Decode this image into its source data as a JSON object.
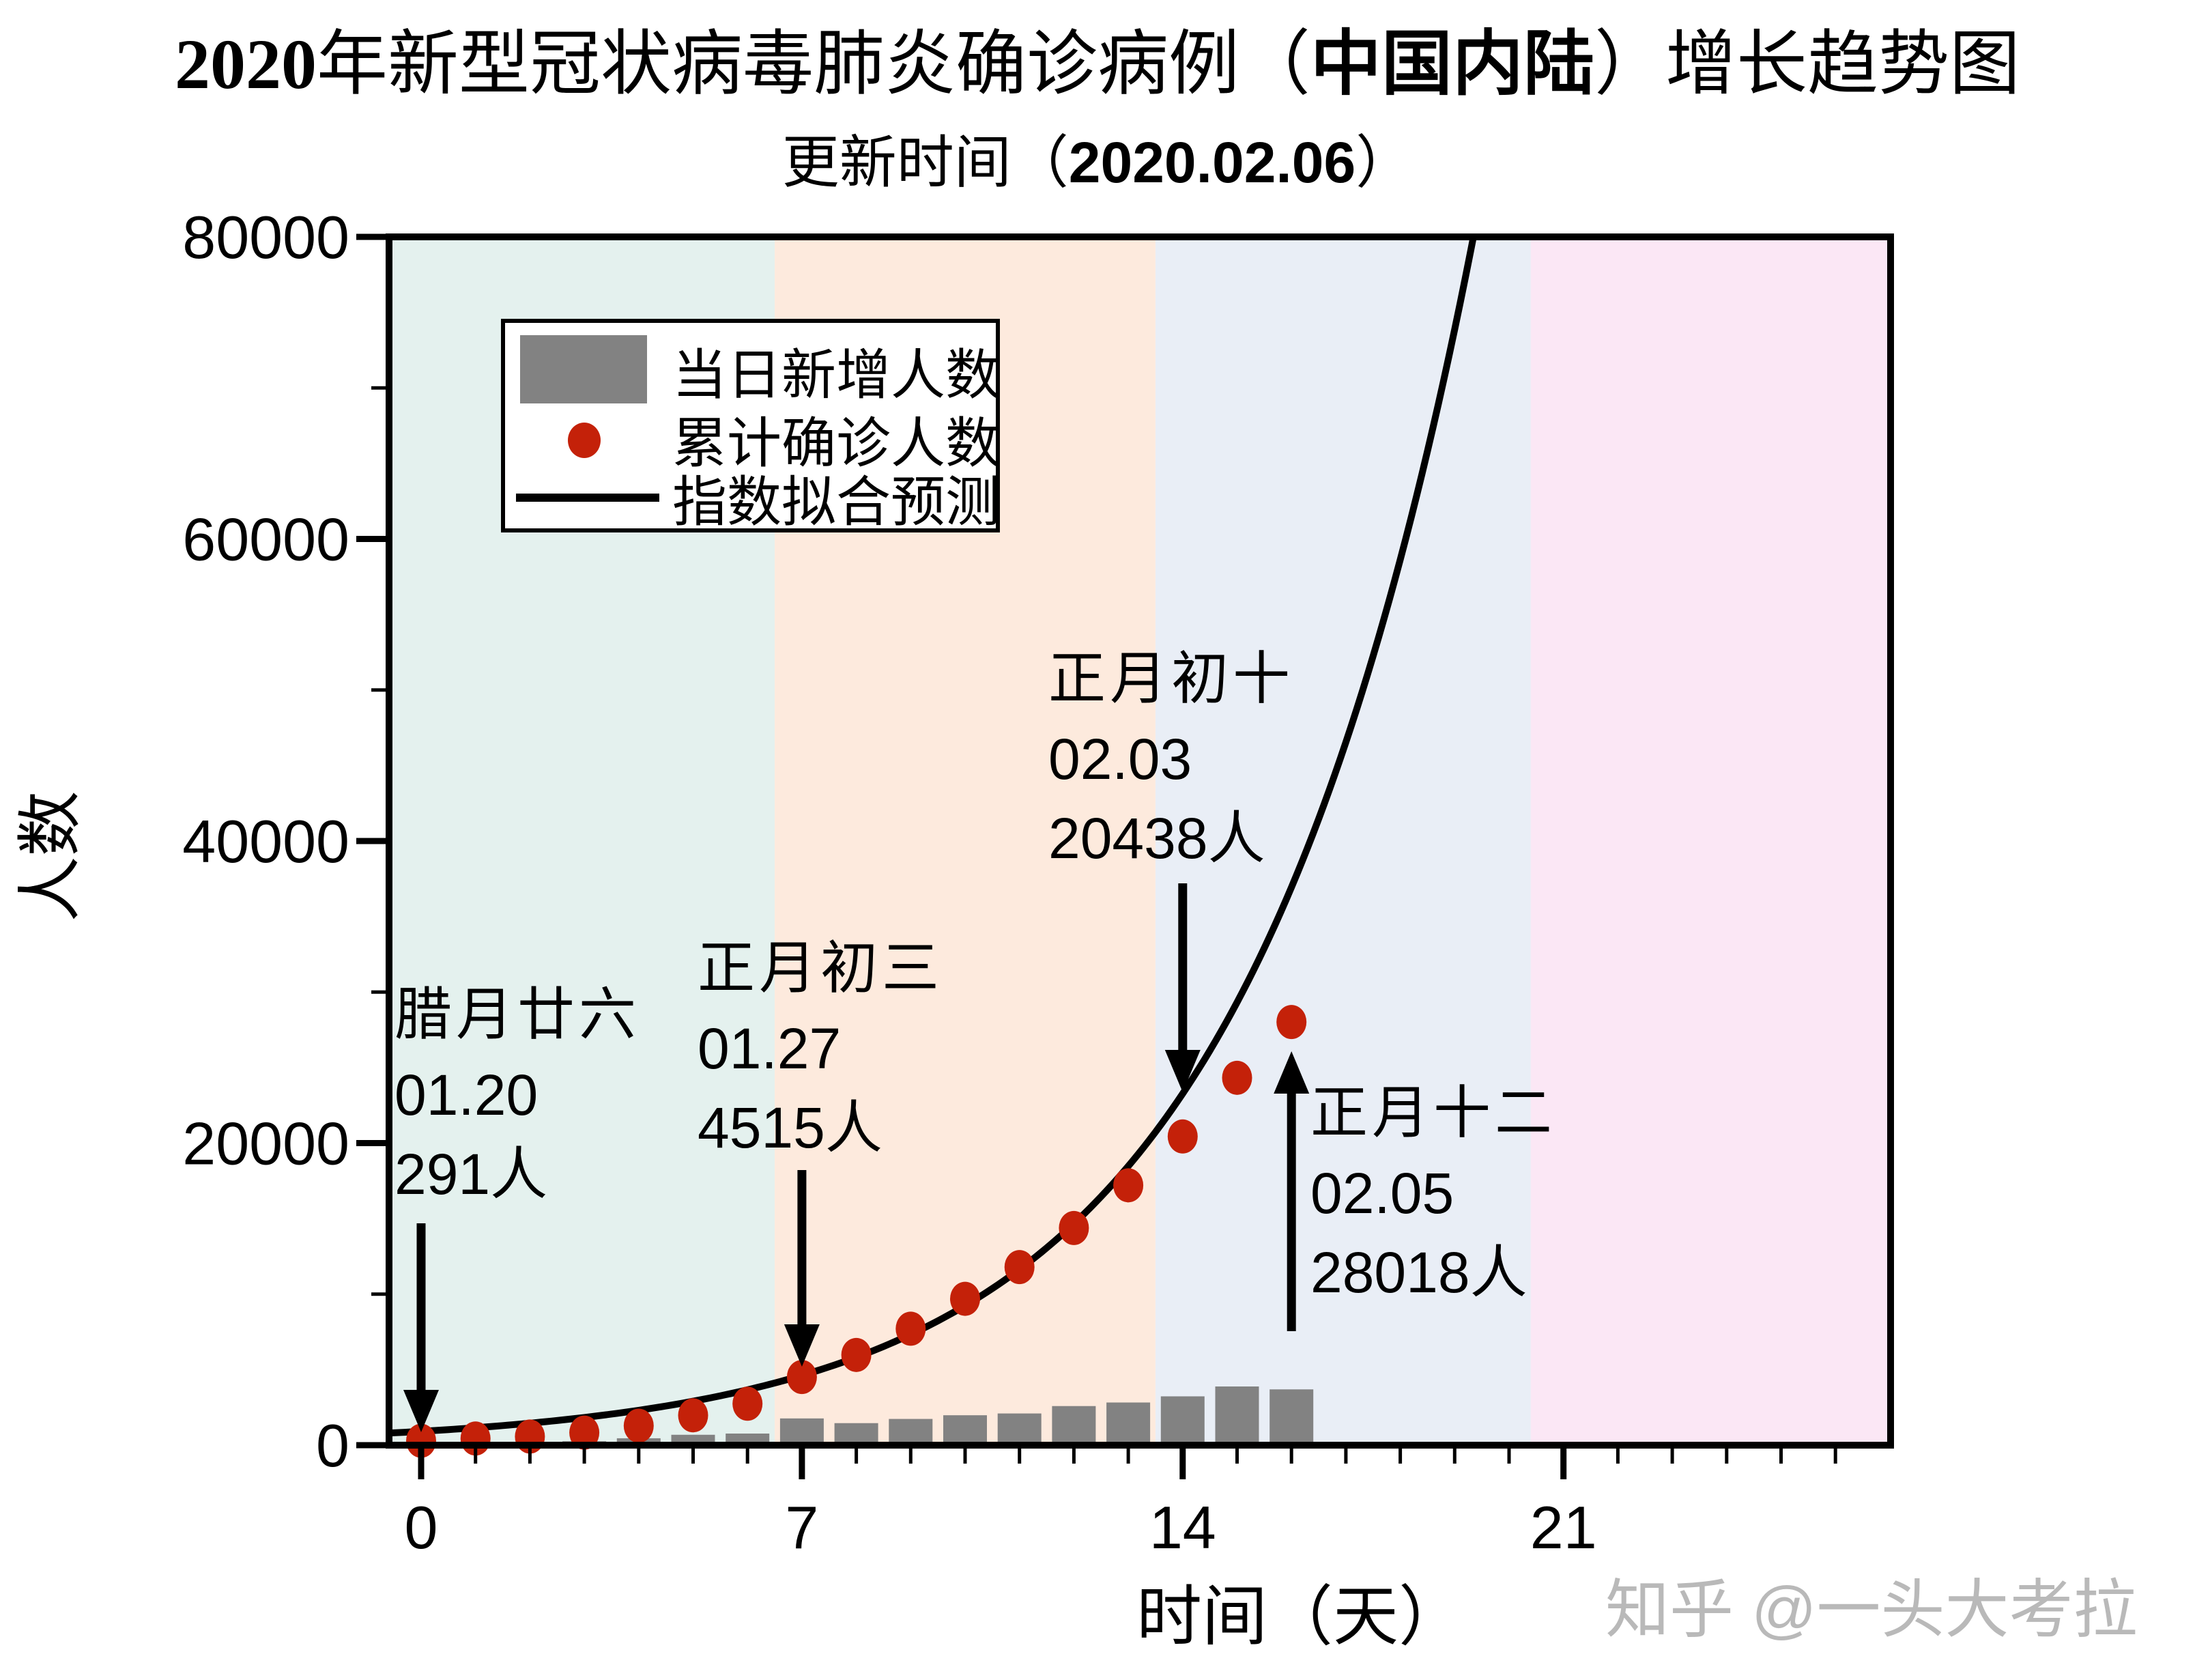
{
  "title": {
    "p1": "2020",
    "p2": "年新型冠状病毒肺炎确诊病例（",
    "p3": "中国内陆",
    "p4": "）增长趋势图"
  },
  "subtitle": {
    "p1": "更新时间（",
    "p2": "2020.02.06",
    "p3": "）"
  },
  "watermark": "知乎 @一头大考拉",
  "legend": {
    "items": [
      {
        "label": "当日新增人数",
        "marker": "bar-swatch"
      },
      {
        "label": "累计确诊人数",
        "marker": "dot-swatch"
      },
      {
        "label": "指数拟合预测",
        "marker": "line-swatch"
      }
    ]
  },
  "axes": {
    "x": {
      "label": "时间（天）",
      "major_ticks": [
        0,
        7,
        14,
        21
      ],
      "minor_tick_step": 1,
      "min": -0.6,
      "max": 27
    },
    "y": {
      "label": "人数",
      "major_ticks": [
        0,
        20000,
        40000,
        60000,
        80000
      ],
      "minor_ticks": [
        10000,
        30000,
        50000,
        70000
      ],
      "min": 0,
      "max": 80000
    }
  },
  "colors": {
    "band_week1": "#e4f1ee",
    "band_week2": "#fdeadd",
    "band_week3": "#e9eef6",
    "band_week4": "#fbe7f5",
    "bar": "#828282",
    "dot": "#c42109",
    "fit_line": "#000000",
    "watermark": "#b9b9b9"
  },
  "chart_data": {
    "type": "bar",
    "title": "2020年新型冠状病毒肺炎确诊病例（中国内陆）增长趋势图",
    "subtitle": "更新时间（2020.02.06）",
    "xlabel": "时间（天）",
    "ylabel": "人数",
    "xlim": [
      -0.6,
      27
    ],
    "ylim": [
      0,
      80000
    ],
    "x_days": [
      0,
      1,
      2,
      3,
      4,
      5,
      6,
      7,
      8,
      9,
      10,
      11,
      12,
      13,
      14,
      15,
      16
    ],
    "series": [
      {
        "name": "当日新增人数",
        "type": "bar",
        "color": "#828282",
        "values": [
          0,
          149,
          131,
          259,
          457,
          688,
          769,
          1771,
          1459,
          1737,
          1981,
          2099,
          2589,
          2825,
          3233,
          3886,
          3694
        ]
      },
      {
        "name": "累计确诊人数",
        "type": "scatter",
        "color": "#c42109",
        "values": [
          291,
          440,
          571,
          830,
          1287,
          1975,
          2744,
          4515,
          5974,
          7711,
          9692,
          11791,
          14380,
          17205,
          20438,
          24324,
          28018
        ]
      },
      {
        "name": "指数拟合预测",
        "type": "line",
        "color": "#000000",
        "fit": {
          "model": "y = a*exp(b*x)",
          "a": 917,
          "b": 0.231,
          "x_start": -0.6
        }
      }
    ],
    "background_bands": [
      {
        "from": -0.6,
        "to": 6.5,
        "color": "#e4f1ee"
      },
      {
        "from": 6.5,
        "to": 13.5,
        "color": "#fdeadd"
      },
      {
        "from": 13.5,
        "to": 20.4,
        "color": "#e9eef6"
      },
      {
        "from": 20.4,
        "to": 27,
        "color": "#fbe7f5"
      }
    ],
    "annotations": [
      {
        "lines": [
          "腊月廿六",
          "01.20",
          "291人"
        ],
        "day": 0,
        "value": 291,
        "arrow": "down"
      },
      {
        "lines": [
          "正月初三",
          "01.27",
          "4515人"
        ],
        "day": 7,
        "value": 4515,
        "arrow": "down"
      },
      {
        "lines": [
          "正月初十",
          "02.03",
          "20438人"
        ],
        "day": 14,
        "value": 20438,
        "arrow": "down"
      },
      {
        "lines": [
          "正月十二",
          "02.05",
          "28018人"
        ],
        "day": 16,
        "value": 28018,
        "arrow": "up"
      }
    ]
  }
}
